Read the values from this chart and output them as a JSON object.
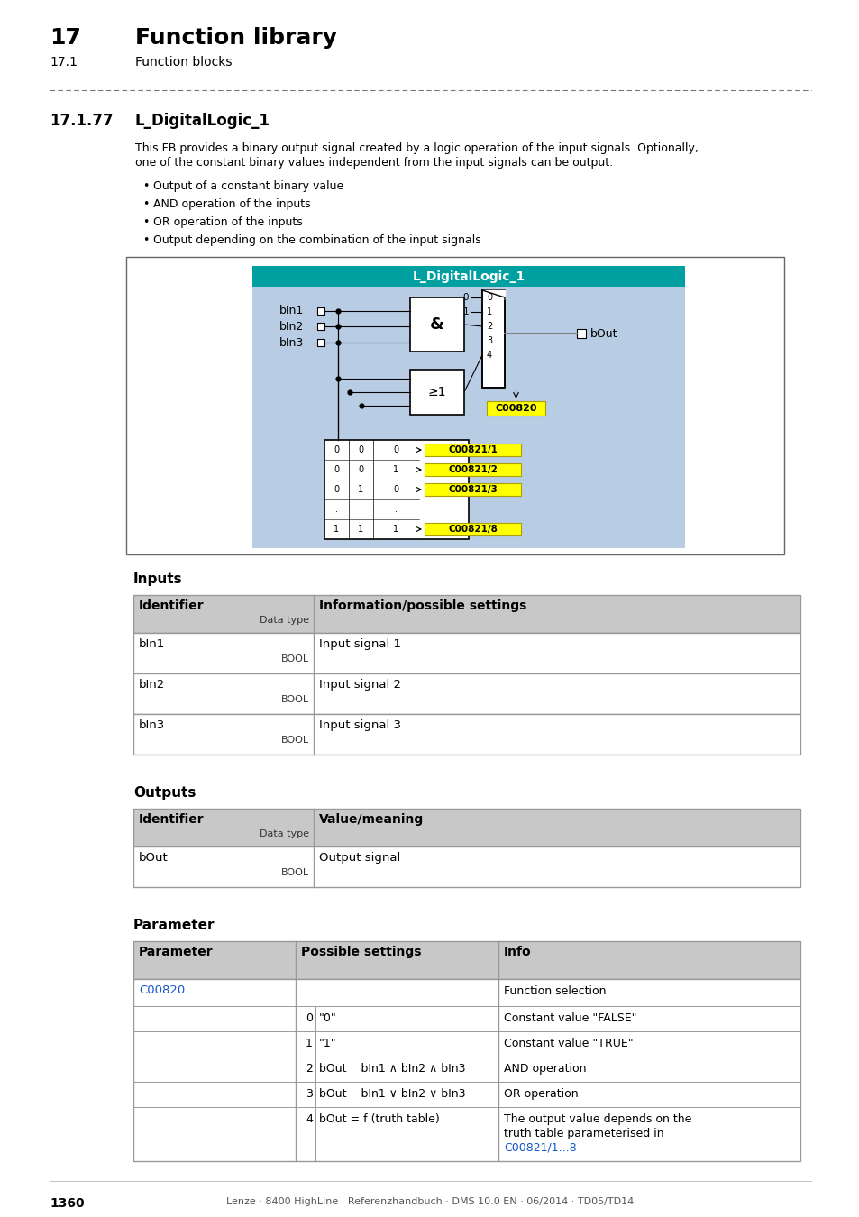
{
  "title_number": "17",
  "title_text": "Function library",
  "subtitle_number": "17.1",
  "subtitle_text": "Function blocks",
  "section_number": "17.1.77",
  "section_title": "L_DigitalLogic_1",
  "description_line1": "This FB provides a binary output signal created by a logic operation of the input signals. Optionally,",
  "description_line2": "one of the constant binary values independent from the input signals can be output.",
  "bullets": [
    "Output of a constant binary value",
    "AND operation of the inputs",
    "OR operation of the inputs",
    "Output depending on the combination of the input signals"
  ],
  "inputs_header": "Inputs",
  "inputs_col1": "Identifier",
  "inputs_col2": "Information/possible settings",
  "inputs_data_type": "Data type",
  "inputs_rows": [
    [
      "bIn1",
      "BOOL",
      "Input signal 1"
    ],
    [
      "bIn2",
      "BOOL",
      "Input signal 2"
    ],
    [
      "bIn3",
      "BOOL",
      "Input signal 3"
    ]
  ],
  "outputs_header": "Outputs",
  "outputs_col1": "Identifier",
  "outputs_col2": "Value/meaning",
  "outputs_data_type": "Data type",
  "outputs_rows": [
    [
      "bOut",
      "BOOL",
      "Output signal"
    ]
  ],
  "param_header": "Parameter",
  "param_col1": "Parameter",
  "param_col2": "Possible settings",
  "param_col3": "Info",
  "footer_page": "1360",
  "footer_text": "Lenze · 8400 HighLine · Referenzhandbuch · DMS 10.0 EN · 06/2014 · TD05/TD14",
  "bg_color": "#ffffff",
  "header_bg": "#c8c8c8",
  "table_border": "#999999",
  "accent_color": "#1155cc",
  "diagram_bg": "#b8cce4",
  "diagram_title_bg": "#00a0a0",
  "yellow_label": "#ffff00",
  "dash_color": "#777777"
}
